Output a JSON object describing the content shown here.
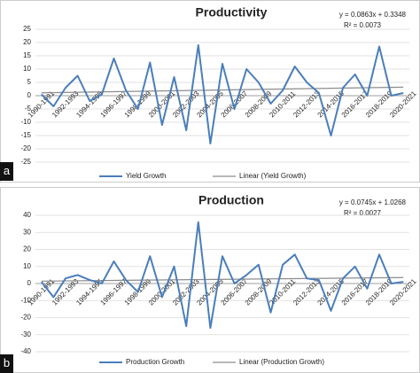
{
  "chart_data": [
    {
      "type": "line",
      "panel_label": "a",
      "title": "Productivity",
      "equation": "y = 0.0863x + 0.3348",
      "r_squared": "R² = 0.0073",
      "categories": [
        "1990-1991",
        null,
        "1992-1993",
        null,
        "1994-1995",
        null,
        "1996-1997",
        null,
        "1998-1999",
        null,
        "2000-2001",
        null,
        "2002-2003",
        null,
        "2004-2005",
        null,
        "2006-2007",
        null,
        "2008-2009",
        null,
        "2010-2011",
        null,
        "2012-2013",
        null,
        "2014-2015",
        null,
        "2016-2017",
        null,
        "2018-2019",
        null,
        "2020-2021"
      ],
      "series": [
        {
          "name": "Yield Growth",
          "color": "#4a7ebb",
          "values": [
            0.5,
            -4,
            3,
            7.5,
            -2,
            0.5,
            14,
            2,
            -5,
            12.5,
            -11,
            7,
            -13,
            19,
            -18,
            12,
            -5,
            10,
            5,
            -3,
            2,
            11,
            5,
            1,
            -15,
            3,
            8,
            0,
            18.5,
            0,
            1
          ]
        }
      ],
      "trendline": {
        "name": "Linear (Yield Growth)",
        "color": "#8c8c8c"
      },
      "ylim": [
        -25,
        25
      ],
      "yticks": [
        -25,
        -20,
        -15,
        -10,
        -5,
        0,
        5,
        10,
        15,
        20,
        25
      ],
      "grid": true,
      "legend": "bottom"
    },
    {
      "type": "line",
      "panel_label": "b",
      "title": "Production",
      "equation": "y = 0.0745x + 1.0268",
      "r_squared": "R² = 0.0027",
      "categories": [
        "1990-1991",
        null,
        "1992-1993",
        null,
        "1994-1995",
        null,
        "1996-1997",
        null,
        "1998-1999",
        null,
        "2000-2001",
        null,
        "2002-2003",
        null,
        "2004-2005",
        null,
        "2006-2007",
        null,
        "2008-2009",
        null,
        "2010-2011",
        null,
        "2012-2013",
        null,
        "2014-2015",
        null,
        "2016-2017",
        null,
        "2018-2019",
        null,
        "2020-2021"
      ],
      "series": [
        {
          "name": "Production Growth",
          "color": "#4a7ebb",
          "values": [
            1,
            -8,
            3,
            5,
            2,
            0,
            13,
            2,
            -5,
            16,
            -8,
            10,
            -25,
            36,
            -26,
            16,
            0,
            5,
            11,
            -17,
            11,
            17,
            3,
            2,
            -16,
            3,
            10,
            -3,
            17,
            0,
            1
          ]
        }
      ],
      "trendline": {
        "name": "Linear (Production Growth)",
        "color": "#8c8c8c"
      },
      "ylim": [
        -40,
        40
      ],
      "yticks": [
        -40,
        -30,
        -20,
        -10,
        0,
        10,
        20,
        30,
        40
      ],
      "grid": true,
      "legend": "bottom"
    }
  ]
}
